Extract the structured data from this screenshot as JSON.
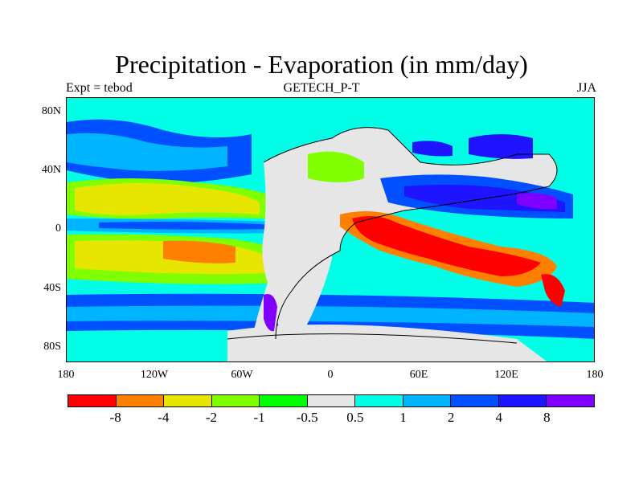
{
  "title": "Precipitation - Evaporation (in mm/day)",
  "left_subtitle": "Expt = tebod",
  "center_subtitle": "GETECH_P-T",
  "right_subtitle": "JJA",
  "map": {
    "y_ticks": [
      "80N",
      "40N",
      "0",
      "40S",
      "80S"
    ],
    "x_ticks": [
      "180",
      "120W",
      "60W",
      "0",
      "60E",
      "120E",
      "180"
    ]
  },
  "colorbar": {
    "colors": [
      "#ff0000",
      "#ff8000",
      "#e6e600",
      "#80ff00",
      "#00ff00",
      "#e6e6e6",
      "#00ffe6",
      "#00b4ff",
      "#0050ff",
      "#1e14ff",
      "#8000ff"
    ],
    "labels": [
      "-8",
      "-4",
      "-2",
      "-1",
      "-0.5",
      "0.5",
      "1",
      "2",
      "4",
      "8"
    ]
  }
}
